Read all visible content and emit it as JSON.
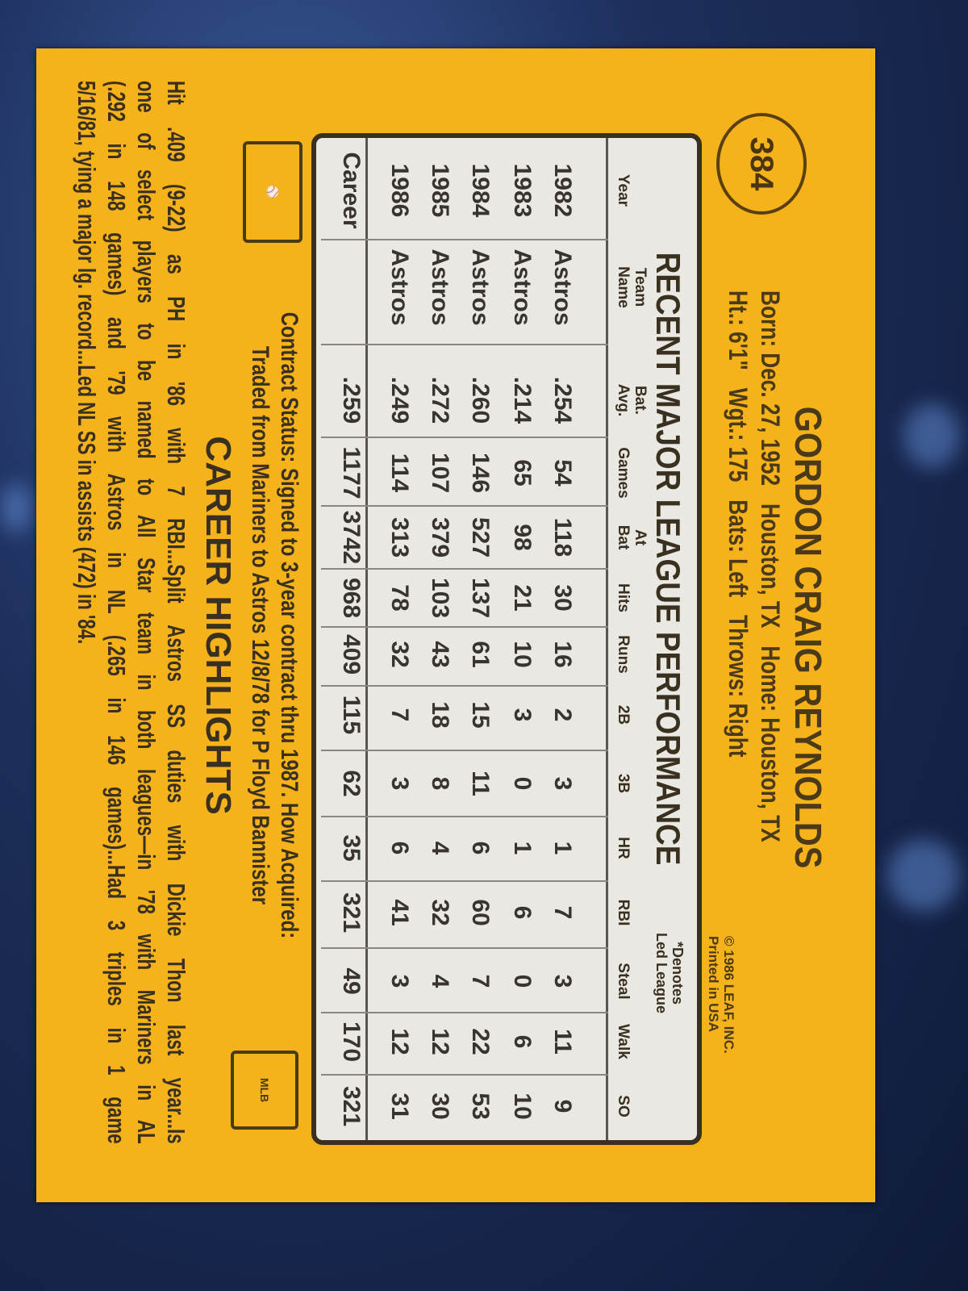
{
  "card": {
    "number": "384",
    "name": "GORDON CRAIG REYNOLDS",
    "bio_line1": "Born: Dec. 27, 1952   Houston, TX   Home: Houston, TX",
    "bio_line2": "Ht.: 6'1\"   Wgt.: 175   Bats: Left   Throws: Right",
    "copyright": "© 1986 LEAF, INC.",
    "printed": "Printed in USA",
    "colors": {
      "card": "#f5b21a",
      "table_bg": "#e9e8e3",
      "ink": "#3a3020"
    }
  },
  "stats": {
    "title": "RECENT MAJOR LEAGUE PERFORMANCE",
    "note_line1": "*Denotes",
    "note_line2": "Led League",
    "columns": [
      {
        "l1": "",
        "l2": "Year"
      },
      {
        "l1": "Team",
        "l2": "Name"
      },
      {
        "l1": "Bat.",
        "l2": "Avg."
      },
      {
        "l1": "",
        "l2": "Games"
      },
      {
        "l1": "At",
        "l2": "Bat"
      },
      {
        "l1": "",
        "l2": "Hits"
      },
      {
        "l1": "",
        "l2": "Runs"
      },
      {
        "l1": "",
        "l2": "2B"
      },
      {
        "l1": "",
        "l2": "3B"
      },
      {
        "l1": "",
        "l2": "HR"
      },
      {
        "l1": "",
        "l2": "RBI"
      },
      {
        "l1": "",
        "l2": "Steal"
      },
      {
        "l1": "",
        "l2": "Walk"
      },
      {
        "l1": "",
        "l2": "SO"
      }
    ],
    "rows": [
      [
        "1982",
        "Astros",
        ".254",
        "54",
        "118",
        "30",
        "16",
        "2",
        "3",
        "1",
        "7",
        "3",
        "11",
        "9"
      ],
      [
        "1983",
        "Astros",
        ".214",
        "65",
        "98",
        "21",
        "10",
        "3",
        "0",
        "1",
        "6",
        "0",
        "6",
        "10"
      ],
      [
        "1984",
        "Astros",
        ".260",
        "146",
        "527",
        "137",
        "61",
        "15",
        "11",
        "6",
        "60",
        "7",
        "22",
        "53"
      ],
      [
        "1985",
        "Astros",
        ".272",
        "107",
        "379",
        "103",
        "43",
        "18",
        "8",
        "4",
        "32",
        "4",
        "12",
        "30"
      ],
      [
        "1986",
        "Astros",
        ".249",
        "114",
        "313",
        "78",
        "32",
        "7",
        "3",
        "6",
        "41",
        "3",
        "12",
        "31"
      ],
      [
        "Career",
        "",
        ".259",
        "1177",
        "3742",
        "968",
        "409",
        "115",
        "62",
        "35",
        "321",
        "49",
        "170",
        "321"
      ]
    ]
  },
  "contract": {
    "line1": "Contract Status: Signed to 3-year contract thru 1987. How Acquired:",
    "line2": "Traded from Mariners to Astros 12/8/78 for P Floyd Bannister"
  },
  "highlights": {
    "title": "CAREER HIGHLIGHTS",
    "lines": [
      "Hit .409 (9-22) as PH in '86 with 7 RBI...Split Astros SS duties with Dickie Thon last year...Is",
      "one of select players to be named to All Star team in both leagues—in '78 with Mariners in AL",
      "(.292 in 148 games) and '79 with Astros in NL (.265 in 146 games)...Had 3 triples in 1 game",
      "5/16/81, tying a major lg. record...Led NL SS in assists (472) in '84."
    ]
  },
  "logos": {
    "left": "mlbpa-logo",
    "right": "MLB"
  }
}
